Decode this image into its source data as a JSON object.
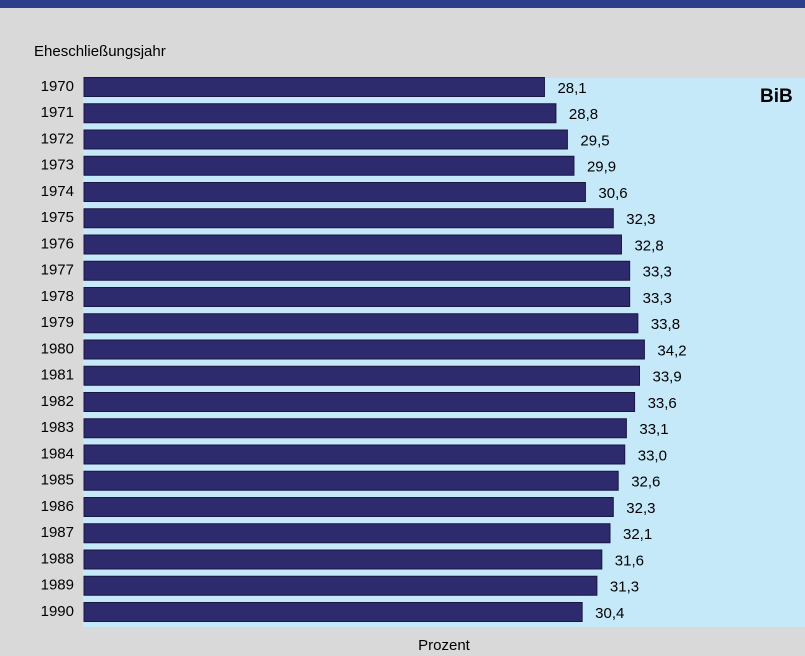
{
  "chart_data": {
    "type": "barh",
    "y_label": "Eheschließungsjahr",
    "x_label": "Prozent",
    "annotation": "BiB",
    "categories": [
      "1970",
      "1971",
      "1972",
      "1973",
      "1974",
      "1975",
      "1976",
      "1977",
      "1978",
      "1979",
      "1980",
      "1981",
      "1982",
      "1983",
      "1984",
      "1985",
      "1986",
      "1987",
      "1988",
      "1989",
      "1990"
    ],
    "values": [
      28.1,
      28.8,
      29.5,
      29.9,
      30.6,
      32.3,
      32.8,
      33.3,
      33.3,
      33.8,
      34.2,
      33.9,
      33.6,
      33.1,
      33.0,
      32.6,
      32.3,
      32.1,
      31.6,
      31.3,
      30.4
    ],
    "value_labels": [
      "28,1",
      "28,8",
      "29,5",
      "29,9",
      "30,6",
      "32,3",
      "32,8",
      "33,3",
      "33,3",
      "33,8",
      "34,2",
      "33,9",
      "33,6",
      "33,1",
      "33,0",
      "32,6",
      "32,3",
      "32,1",
      "31,6",
      "31,3",
      "30,4"
    ],
    "color": "#2e2a6e",
    "xlim": [
      0,
      44
    ]
  }
}
